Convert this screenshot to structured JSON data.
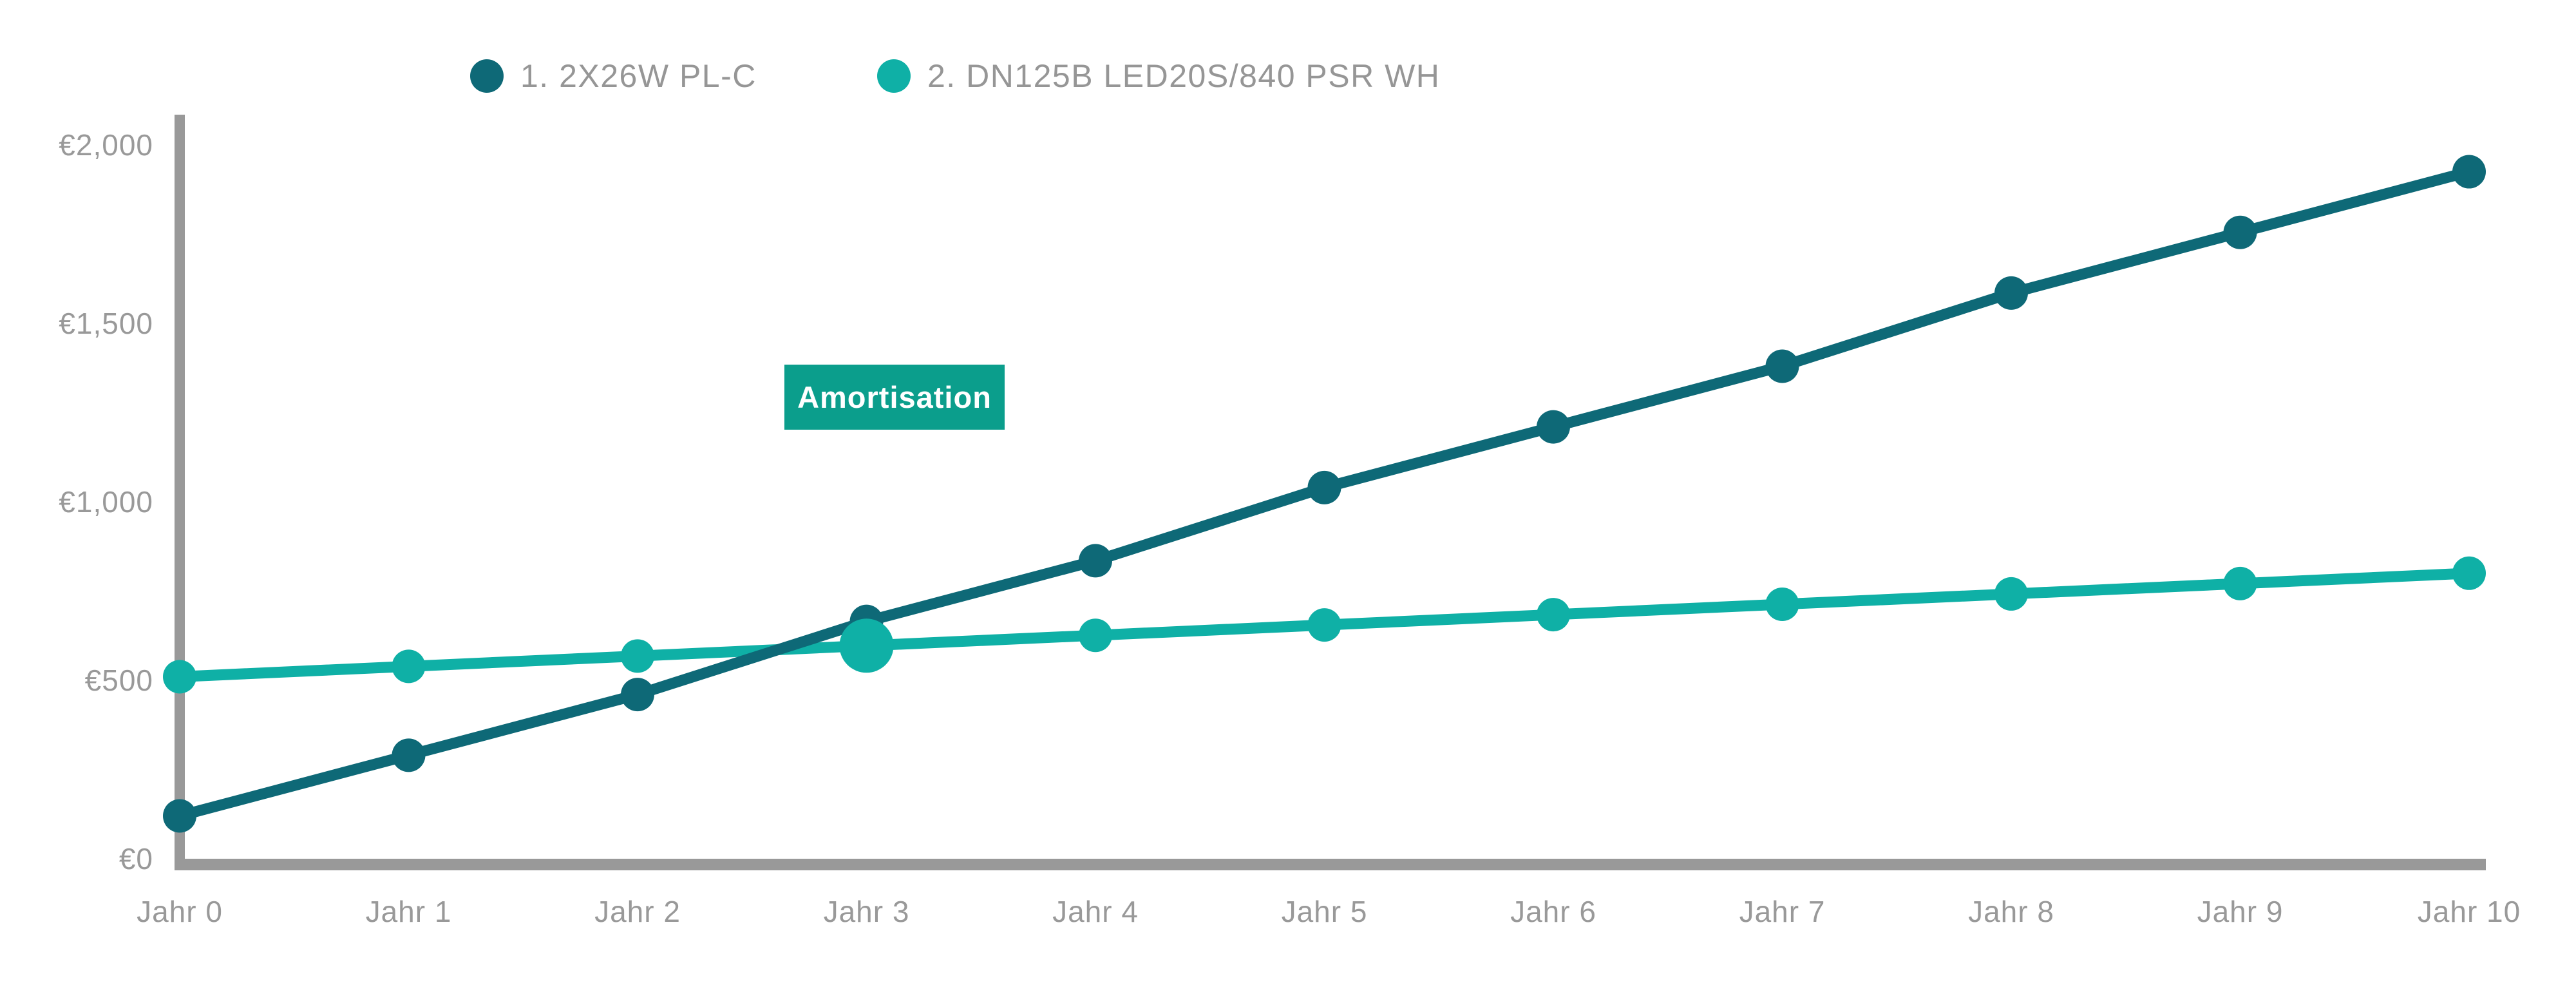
{
  "chart_data": {
    "type": "line",
    "x_categories": [
      "Jahr 0",
      "Jahr 1",
      "Jahr 2",
      "Jahr 3",
      "Jahr 4",
      "Jahr 5",
      "Jahr 6",
      "Jahr 7",
      "Jahr 8",
      "Jahr 9",
      "Jahr 10"
    ],
    "series": [
      {
        "name": "1. 2X26W PL-C",
        "color": "#0e6977",
        "values": [
          120,
          290,
          460,
          665,
          835,
          1040,
          1210,
          1380,
          1585,
          1755,
          1925
        ]
      },
      {
        "name": "2. DN125B LED20S/840 PSR WH",
        "color": "#0fb0a6",
        "values": [
          510,
          539,
          568,
          597,
          626,
          655,
          684,
          713,
          742,
          771,
          800
        ]
      }
    ],
    "y_ticks": [
      "€0",
      "€500",
      "€1,000",
      "€1,500",
      "€2,000"
    ],
    "y_tick_values": [
      0,
      500,
      1000,
      1500,
      2000
    ],
    "ylim": [
      0,
      2000
    ],
    "currency": "EUR",
    "grid": false,
    "legend_position": "top",
    "annotation": {
      "label": "Amortisation",
      "series_index": 1,
      "x_index": 3,
      "background_color": "#0b9e8c",
      "text_color": "#ffffff"
    },
    "axis_color": "#999999",
    "tick_label_color": "#999999",
    "legend_text_color": "#969696",
    "background_color": "#ffffff"
  }
}
